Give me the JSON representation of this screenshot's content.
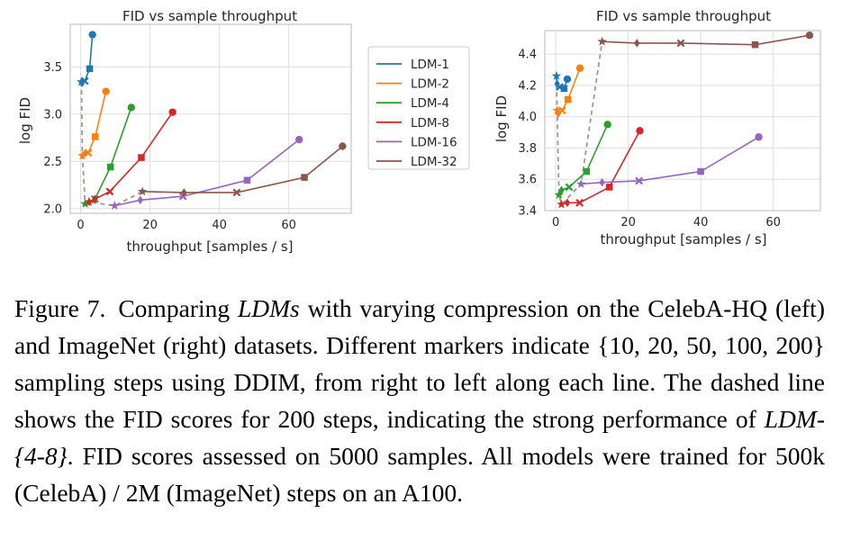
{
  "chart_data": [
    {
      "type": "line",
      "title": "FID vs sample throughput",
      "xlabel": "throughput [samples / s]",
      "ylabel": "log FID",
      "xlim": [
        -3,
        78
      ],
      "ylim": [
        1.95,
        3.95
      ],
      "xticks": [
        0,
        20,
        40,
        60
      ],
      "yticks": [
        2.0,
        2.5,
        3.0,
        3.5
      ],
      "ytick_labels": [
        "2.0",
        "2.5",
        "3.0",
        "3.5"
      ],
      "grid": true,
      "legend": "outside-right",
      "markers_by_point": [
        "star",
        "diamond",
        "X",
        "square",
        "circle"
      ],
      "series": [
        {
          "name": "LDM-1",
          "color": "#1f77b4",
          "x": [
            0.2,
            0.4,
            1.2,
            2.6,
            3.4
          ],
          "y": [
            3.34,
            3.33,
            3.35,
            3.48,
            3.84
          ]
        },
        {
          "name": "LDM-2",
          "color": "#ff7f0e",
          "x": [
            0.5,
            1.4,
            2.2,
            4.2,
            7.3
          ],
          "y": [
            2.56,
            2.59,
            2.59,
            2.76,
            3.24
          ]
        },
        {
          "name": "LDM-4",
          "color": "#2ca02c",
          "x": [
            1.3,
            2.5,
            4.1,
            8.6,
            14.6
          ],
          "y": [
            2.05,
            2.07,
            2.1,
            2.44,
            3.07
          ]
        },
        {
          "name": "LDM-8",
          "color": "#d62728",
          "x": [
            2.4,
            4.1,
            8.4,
            17.5,
            26.5
          ],
          "y": [
            2.07,
            2.1,
            2.18,
            2.54,
            3.02
          ]
        },
        {
          "name": "LDM-16",
          "color": "#9467bd",
          "x": [
            9.8,
            17.2,
            29.5,
            48.0,
            63.0
          ],
          "y": [
            2.03,
            2.09,
            2.13,
            2.3,
            2.73
          ]
        },
        {
          "name": "LDM-32",
          "color": "#8c564b",
          "x": [
            17.8,
            29.8,
            45.0,
            64.5,
            75.5
          ],
          "y": [
            2.18,
            2.17,
            2.17,
            2.33,
            2.66
          ]
        }
      ]
    },
    {
      "type": "line",
      "title": "FID vs sample throughput",
      "xlabel": "throughput [samples / s]",
      "ylabel": "log FID",
      "xlim": [
        -3,
        73
      ],
      "ylim": [
        3.4,
        4.55
      ],
      "xticks": [
        0,
        20,
        40,
        60
      ],
      "yticks": [
        3.4,
        3.6,
        3.8,
        4.0,
        4.2,
        4.4
      ],
      "ytick_labels": [
        "3.4",
        "3.6",
        "3.8",
        "4.0",
        "4.2",
        "4.4"
      ],
      "grid": true,
      "legend": "none",
      "markers_by_point": [
        "star",
        "diamond",
        "X",
        "square",
        "circle"
      ],
      "series": [
        {
          "name": "LDM-1",
          "color": "#1f77b4",
          "x": [
            0.2,
            0.4,
            1.1,
            2.3,
            3.2
          ],
          "y": [
            4.26,
            4.21,
            4.19,
            4.18,
            4.24
          ]
        },
        {
          "name": "LDM-2",
          "color": "#ff7f0e",
          "x": [
            0.4,
            0.7,
            1.8,
            3.4,
            6.7
          ],
          "y": [
            4.04,
            4.02,
            4.04,
            4.11,
            4.31
          ]
        },
        {
          "name": "LDM-4",
          "color": "#2ca02c",
          "x": [
            0.9,
            1.6,
            3.7,
            8.5,
            14.3
          ],
          "y": [
            3.5,
            3.53,
            3.55,
            3.65,
            3.95
          ]
        },
        {
          "name": "LDM-8",
          "color": "#d62728",
          "x": [
            1.6,
            3.2,
            6.6,
            14.8,
            23.2
          ],
          "y": [
            3.44,
            3.45,
            3.45,
            3.55,
            3.91
          ]
        },
        {
          "name": "LDM-16",
          "color": "#9467bd",
          "x": [
            7.0,
            12.8,
            23.0,
            40.0,
            56.0
          ],
          "y": [
            3.57,
            3.58,
            3.59,
            3.65,
            3.87
          ]
        },
        {
          "name": "LDM-32",
          "color": "#8c564b",
          "x": [
            12.8,
            22.4,
            34.5,
            55.0,
            70.0
          ],
          "y": [
            4.48,
            4.47,
            4.47,
            4.46,
            4.52
          ]
        }
      ]
    }
  ],
  "caption": {
    "fig_num": "Figure 7.",
    "text_html": "Comparing <i>LDMs</i> with varying compression on the CelebA-HQ (left) and ImageNet (right) datasets. Different markers indicate {10, 20, 50, 100, 200} sampling steps using DDIM, from right to left along each line. The dashed line shows the FID scores for 200 steps, indicating the strong performance of <i>LDM-</i><i>{4-8}</i>. FID scores assessed on 5000 samples. All models were trained for 500k (CelebA) / 2M (ImageNet) steps on an A100."
  }
}
